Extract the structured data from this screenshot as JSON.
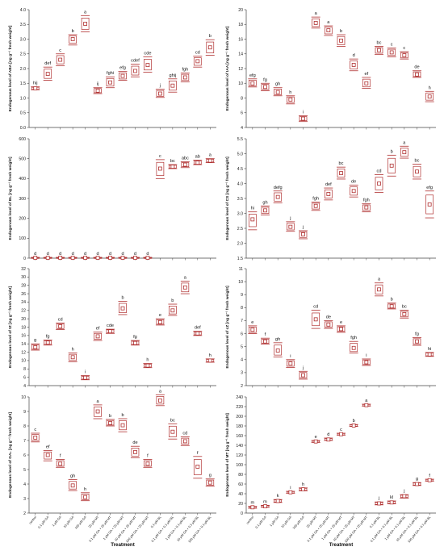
{
  "figure": {
    "colors": {
      "box": "#b03030",
      "axis": "#444444",
      "text": "#111111"
    }
  },
  "chart_data": [
    {
      "type": "box",
      "ylabel": "Endogenous level of ABA [ng g⁻¹ fresh weight]",
      "xlabel": "",
      "ylim": [
        0,
        4.0
      ],
      "ytick_step": 0.5,
      "tick_decimals": 1,
      "categories": [],
      "show_categories": false,
      "values": [
        1.33,
        1.82,
        2.3,
        3.0,
        3.52,
        1.25,
        1.53,
        1.75,
        1.92,
        2.12,
        1.15,
        1.42,
        1.7,
        2.25,
        2.72
      ],
      "whisker_low": [
        1.28,
        1.6,
        2.1,
        2.8,
        3.25,
        1.15,
        1.35,
        1.6,
        1.72,
        1.88,
        1.02,
        1.2,
        1.55,
        2.05,
        2.45
      ],
      "whisker_high": [
        1.38,
        2.05,
        2.5,
        3.15,
        3.8,
        1.35,
        1.72,
        1.9,
        2.15,
        2.4,
        1.3,
        1.65,
        1.85,
        2.42,
        2.98
      ],
      "letters": [
        "hij",
        "def",
        "c",
        "b",
        "a",
        "ij",
        "fghi",
        "efg",
        "cdef",
        "cde",
        "j",
        "ghij",
        "fgh",
        "cd",
        "b"
      ]
    },
    {
      "type": "box",
      "ylabel": "Endogenous level of IAA [ng g⁻¹ fresh weight]",
      "xlabel": "",
      "ylim": [
        4,
        20
      ],
      "ytick_step": 2,
      "tick_decimals": 0,
      "categories": [],
      "show_categories": false,
      "values": [
        10.0,
        9.5,
        8.8,
        7.8,
        5.2,
        18.2,
        17.2,
        15.8,
        12.5,
        10.0,
        14.5,
        14.2,
        13.8,
        11.2,
        8.2
      ],
      "whisker_low": [
        9.5,
        9.0,
        8.3,
        7.2,
        4.8,
        17.5,
        16.5,
        15.0,
        11.7,
        9.3,
        13.9,
        13.6,
        13.3,
        10.8,
        7.5
      ],
      "whisker_high": [
        10.6,
        10.0,
        9.4,
        8.3,
        5.6,
        19.0,
        17.8,
        16.6,
        13.3,
        10.8,
        15.0,
        14.8,
        14.3,
        11.7,
        8.9
      ],
      "letters": [
        "efg",
        "fg",
        "gh",
        "h",
        "i",
        "a",
        "a",
        "b",
        "d",
        "ef",
        "bc",
        "c",
        "c",
        "de",
        "h"
      ]
    },
    {
      "type": "box",
      "ylabel": "Endogenous level of BL [ng g⁻¹ fresh weight]",
      "xlabel": "",
      "ylim": [
        0,
        600
      ],
      "ytick_step": 100,
      "tick_decimals": 0,
      "categories": [],
      "show_categories": false,
      "values": [
        2,
        2,
        2,
        2,
        2,
        2,
        2,
        2,
        2,
        2,
        450,
        460,
        470,
        480,
        490
      ],
      "whisker_low": [
        0,
        0,
        0,
        0,
        0,
        0,
        0,
        0,
        0,
        0,
        400,
        450,
        455,
        470,
        480
      ],
      "whisker_high": [
        4,
        4,
        4,
        4,
        4,
        4,
        4,
        4,
        4,
        4,
        495,
        470,
        485,
        492,
        500
      ],
      "letters": [
        "d",
        "d",
        "d",
        "d",
        "d",
        "d",
        "d",
        "d",
        "d",
        "d",
        "c",
        "bc",
        "abc",
        "ab",
        "a"
      ]
    },
    {
      "type": "box",
      "ylabel": "Endogenous level of CS [ng g⁻¹ fresh weight]",
      "xlabel": "",
      "ylim": [
        1.5,
        5.5
      ],
      "ytick_step": 0.5,
      "tick_decimals": 1,
      "categories": [],
      "show_categories": false,
      "values": [
        2.8,
        3.1,
        3.55,
        2.55,
        2.3,
        3.25,
        3.65,
        4.35,
        3.75,
        3.2,
        4.0,
        4.6,
        5.05,
        4.4,
        3.3
      ],
      "whisker_low": [
        2.45,
        2.95,
        3.35,
        2.4,
        2.15,
        3.1,
        3.45,
        4.15,
        3.55,
        3.05,
        3.7,
        4.25,
        4.85,
        4.15,
        2.85
      ],
      "whisker_high": [
        3.05,
        3.25,
        3.75,
        2.72,
        2.42,
        3.38,
        3.85,
        4.55,
        3.95,
        3.32,
        4.3,
        4.95,
        5.25,
        4.65,
        3.75
      ],
      "letters": [
        "hi",
        "gh",
        "defg",
        "j",
        "j",
        "fgh",
        "def",
        "bc",
        "de",
        "fgh",
        "cd",
        "b",
        "a",
        "bc",
        "efg"
      ]
    },
    {
      "type": "box",
      "ylabel": "Endogenous level of tZ [ng g⁻¹ fresh weight]",
      "xlabel": "",
      "ylim": [
        4,
        32
      ],
      "ytick_step": 2,
      "tick_decimals": 0,
      "categories": [],
      "show_categories": false,
      "values": [
        13.2,
        14.3,
        18.2,
        10.8,
        5.9,
        15.8,
        17.0,
        22.5,
        14.2,
        8.8,
        19.2,
        22.0,
        27.5,
        16.5,
        10.0
      ],
      "whisker_low": [
        12.5,
        13.7,
        17.4,
        9.7,
        5.4,
        14.8,
        16.5,
        21.0,
        13.7,
        8.3,
        18.5,
        20.8,
        26.0,
        16.0,
        9.6
      ],
      "whisker_high": [
        14.0,
        14.9,
        19.0,
        11.8,
        6.4,
        16.8,
        17.5,
        24.2,
        14.8,
        9.3,
        20.0,
        23.5,
        29.0,
        17.0,
        10.4
      ],
      "letters": [
        "g",
        "fg",
        "cd",
        "h",
        "i",
        "ef",
        "cde",
        "b",
        "fg",
        "h",
        "e",
        "b",
        "a",
        "def",
        "h"
      ]
    },
    {
      "type": "box",
      "ylabel": "Endogenous level of cZ [ng g⁻¹ fresh weight]",
      "xlabel": "",
      "ylim": [
        2,
        11
      ],
      "ytick_step": 1,
      "tick_decimals": 0,
      "categories": [],
      "show_categories": false,
      "values": [
        6.3,
        5.4,
        4.7,
        3.7,
        2.8,
        7.1,
        6.7,
        6.35,
        4.9,
        3.8,
        9.4,
        8.1,
        7.5,
        5.4,
        4.4
      ],
      "whisker_low": [
        6.0,
        5.2,
        4.2,
        3.4,
        2.5,
        6.4,
        6.4,
        6.1,
        4.5,
        3.55,
        8.9,
        7.9,
        7.2,
        5.1,
        4.25
      ],
      "whisker_high": [
        6.6,
        5.65,
        5.3,
        4.0,
        3.1,
        7.8,
        7.0,
        6.6,
        5.4,
        4.05,
        9.9,
        8.35,
        7.8,
        5.7,
        4.55
      ],
      "letters": [
        "e",
        "f",
        "gh",
        "i",
        "j",
        "cd",
        "de",
        "e",
        "fgh",
        "i",
        "a",
        "b",
        "bc",
        "fg",
        "hi"
      ]
    },
    {
      "type": "box",
      "ylabel": "Endogenous level of GA₃ [ng g⁻¹ fresh weight]",
      "xlabel": "Treatment",
      "ylim": [
        2,
        10
      ],
      "ytick_step": 1,
      "tick_decimals": 0,
      "categories": [
        "control",
        "0.1 µM GA",
        "1 µM GA",
        "10 µM GA",
        "100 µM GA",
        "25 µM MT",
        "0.1 µM GA + 25 µM MT",
        "1 µM GA + 25 µM MT",
        "10 µM GA + 25 µM MT",
        "100 µM GA + 25 µM MT",
        "0.1 µM BL",
        "0.1 µM GA + 0.1 µM BL",
        "1 µM GA + 0.1 µM BL",
        "10 µM GA + 0.1 µM BL",
        "100 µM GA + 0.1 µM BL"
      ],
      "show_categories": true,
      "values": [
        7.2,
        6.0,
        5.4,
        3.9,
        3.1,
        9.0,
        8.2,
        8.05,
        6.2,
        5.4,
        9.75,
        7.6,
        6.95,
        5.2,
        4.1
      ],
      "whisker_low": [
        6.9,
        5.6,
        5.15,
        3.55,
        2.85,
        8.5,
        8.0,
        7.6,
        5.8,
        5.15,
        9.4,
        7.1,
        6.65,
        4.4,
        3.85
      ],
      "whisker_high": [
        7.5,
        6.3,
        5.7,
        4.3,
        3.4,
        9.45,
        8.45,
        8.5,
        6.6,
        5.7,
        10.15,
        8.15,
        7.25,
        5.9,
        4.35
      ],
      "letters": [
        "c",
        "ef",
        "f",
        "gh",
        "h",
        "a",
        "b",
        "b",
        "de",
        "f",
        "a",
        "bc",
        "cd",
        "f",
        "g"
      ]
    },
    {
      "type": "box",
      "ylabel": "Endogenous level of MT [ng g⁻¹ fresh weight]",
      "xlabel": "Treatment",
      "ylim": [
        0,
        240
      ],
      "ytick_step": 20,
      "tick_decimals": 0,
      "categories": [
        "control",
        "0.1 µM GA",
        "1 µM GA",
        "10 µM GA",
        "100 µM GA",
        "25 µM MT",
        "0.1 µM GA + 25 µM MT",
        "1 µM GA + 25 µM MT",
        "10 µM GA + 25 µM MT",
        "100 µM GA + 25 µM MT",
        "0.1 µM BL",
        "0.1 µM GA + 0.1 µM BL",
        "1 µM GA + 0.1 µM BL",
        "10 µM GA + 0.1 µM BL",
        "100 µM GA + 0.1 µM BL"
      ],
      "show_categories": true,
      "values": [
        12,
        14,
        25,
        43,
        49,
        148,
        152,
        163,
        181,
        223,
        20,
        22,
        35,
        60,
        68
      ],
      "whisker_low": [
        10,
        12,
        22,
        41,
        46,
        146,
        150,
        161,
        179,
        221,
        17,
        19,
        31,
        57,
        66
      ],
      "whisker_high": [
        14,
        16,
        28,
        45,
        52,
        150,
        155,
        165,
        183,
        225,
        23,
        25,
        38,
        63,
        70
      ],
      "letters": [
        "m",
        "m",
        "k",
        "i",
        "h",
        "e",
        "d",
        "c",
        "b",
        "a",
        "j",
        "kl",
        "j",
        "g",
        "f"
      ]
    }
  ]
}
